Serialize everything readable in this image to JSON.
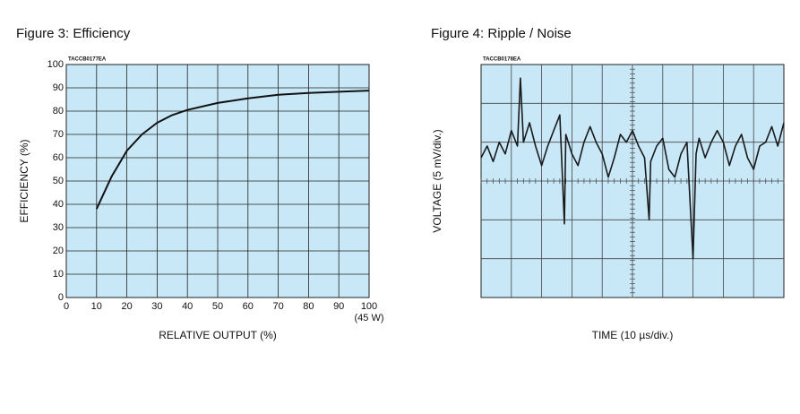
{
  "chart_data": [
    {
      "type": "line",
      "title": "Figure 3: Efficiency",
      "figure_code": "TACCB0177EA",
      "x_label": "RELATIVE OUTPUT (%)",
      "y_label": "EFFICIENCY (%)",
      "x_note": "(45 W)",
      "x": [
        10,
        15,
        20,
        25,
        30,
        35,
        40,
        50,
        60,
        70,
        80,
        90,
        100
      ],
      "series": [
        {
          "color": "#111111",
          "values": [
            38,
            52,
            63,
            70,
            75,
            78.3,
            80.5,
            83.5,
            85.5,
            87,
            87.8,
            88.3,
            88.8
          ]
        }
      ],
      "xlim": [
        0,
        100
      ],
      "xticks": [
        0,
        10,
        20,
        30,
        40,
        50,
        60,
        70,
        80,
        90,
        100
      ],
      "ylim": [
        0,
        100
      ],
      "yticks": [
        0,
        10,
        20,
        30,
        40,
        50,
        60,
        70,
        80,
        90,
        100
      ],
      "grid": true,
      "background": "#c8e8f8"
    },
    {
      "type": "scope",
      "title": "Figure 4: Ripple / Noise",
      "figure_code": "TACCB0178EA",
      "x_label": "TIME (10 µs/div.)",
      "y_label": "VOLTAGE (5 mV/div.)",
      "x": [
        0,
        0.2,
        0.4,
        0.6,
        0.8,
        1.0,
        1.2,
        1.3,
        1.4,
        1.6,
        1.8,
        2.0,
        2.2,
        2.4,
        2.6,
        2.75,
        2.8,
        3.0,
        3.2,
        3.4,
        3.6,
        3.8,
        4.0,
        4.2,
        4.4,
        4.6,
        4.8,
        5.0,
        5.2,
        5.4,
        5.55,
        5.6,
        5.8,
        6.0,
        6.2,
        6.4,
        6.6,
        6.8,
        7.0,
        7.1,
        7.2,
        7.4,
        7.6,
        7.8,
        8.0,
        8.2,
        8.4,
        8.6,
        8.8,
        9.0,
        9.2,
        9.4,
        9.6,
        9.8,
        10.0
      ],
      "series": [
        {
          "color": "#1a1a1a",
          "values": [
            0.6,
            0.9,
            0.5,
            1.0,
            0.7,
            1.3,
            0.9,
            2.65,
            1.0,
            1.5,
            0.9,
            0.4,
            0.9,
            1.3,
            1.7,
            -1.1,
            1.2,
            0.7,
            0.4,
            1.0,
            1.4,
            1.0,
            0.7,
            0.1,
            0.6,
            1.2,
            1.0,
            1.3,
            0.9,
            0.6,
            -1.0,
            0.5,
            0.9,
            1.1,
            0.3,
            0.1,
            0.7,
            1.0,
            -2.0,
            0.7,
            1.1,
            0.6,
            1.0,
            1.3,
            1.0,
            0.4,
            0.9,
            1.2,
            0.6,
            0.3,
            0.9,
            1.0,
            1.4,
            0.9,
            1.5
          ]
        }
      ],
      "xlim": [
        0,
        10
      ],
      "ylim": [
        -3,
        3
      ],
      "grid": true,
      "background": "#c8e8f8"
    }
  ]
}
